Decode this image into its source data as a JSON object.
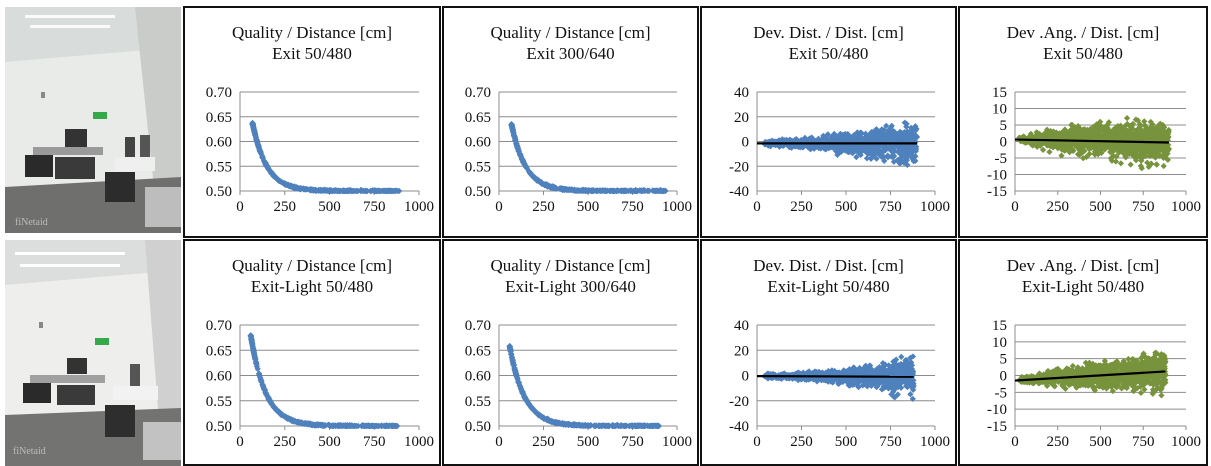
{
  "colors": {
    "quality_series": "#4f81bd",
    "deviation_angle_series": "#77933c",
    "trend_line": "#000000"
  },
  "photos": [
    {
      "name": "photo-room-exit",
      "watermark": "fiNetaid"
    },
    {
      "name": "photo-room-exit-light",
      "watermark": "fiNetaid"
    }
  ],
  "chart_data": [
    {
      "id": "r0c0",
      "type": "scatter",
      "title": [
        "Quality / Distance [cm]",
        "Exit 50/480"
      ],
      "xlim": [
        0,
        1000
      ],
      "xticks": [
        0,
        250,
        500,
        750,
        1000
      ],
      "ylim": [
        0.5,
        0.7
      ],
      "yticks": [
        "0.50",
        "0.55",
        "0.60",
        "0.65",
        "0.70"
      ],
      "grid": true,
      "color": "#4f81bd",
      "curve": {
        "kind": "decay",
        "x": [
          70,
          890
        ],
        "y_start": 0.637,
        "y_end": 0.5,
        "k": 0.0125
      }
    },
    {
      "id": "r0c1",
      "type": "scatter",
      "title": [
        "Quality / Distance [cm]",
        "Exit 300/640"
      ],
      "xlim": [
        0,
        1000
      ],
      "xticks": [
        0,
        250,
        500,
        750,
        1000
      ],
      "ylim": [
        0.5,
        0.7
      ],
      "yticks": [
        "0.50",
        "0.55",
        "0.60",
        "0.65",
        "0.70"
      ],
      "grid": true,
      "color": "#4f81bd",
      "curve": {
        "kind": "decay",
        "x": [
          70,
          940
        ],
        "y_start": 0.635,
        "y_end": 0.5,
        "k": 0.0125
      }
    },
    {
      "id": "r0c2",
      "type": "scatter",
      "title": [
        "Dev. Dist. / Dist. [cm]",
        "Exit 50/480"
      ],
      "xlim": [
        0,
        1000
      ],
      "xticks": [
        0,
        250,
        500,
        750,
        1000
      ],
      "ylim": [
        -40,
        40
      ],
      "yticks": [
        "-40",
        "-20",
        "0",
        "20",
        "40"
      ],
      "grid": true,
      "color": "#4f81bd",
      "spread": {
        "x": [
          40,
          900
        ],
        "max": 36,
        "growth": 1.6
      },
      "trend": {
        "x": [
          0,
          900
        ],
        "y": [
          -1.5,
          -1.5
        ]
      }
    },
    {
      "id": "r0c3",
      "type": "scatter",
      "title": [
        "Dev .Ang. / Dist. [cm]",
        "Exit 50/480"
      ],
      "xlim": [
        0,
        1000
      ],
      "xticks": [
        0,
        250,
        500,
        750,
        1000
      ],
      "ylim": [
        -15,
        15
      ],
      "yticks": [
        "-15",
        "-10",
        "-5",
        "0",
        "5",
        "10",
        "15"
      ],
      "grid": true,
      "color": "#77933c",
      "spread": {
        "x": [
          20,
          900
        ],
        "max": 14,
        "growth": 0.7
      },
      "trend": {
        "x": [
          0,
          900
        ],
        "y": [
          0.6,
          -0.3
        ]
      }
    },
    {
      "id": "r1c0",
      "type": "scatter",
      "title": [
        "Quality / Distance [cm]",
        "Exit-Light 50/480"
      ],
      "xlim": [
        0,
        1000
      ],
      "xticks": [
        0,
        250,
        500,
        750,
        1000
      ],
      "ylim": [
        0.5,
        0.7
      ],
      "yticks": [
        "0.50",
        "0.55",
        "0.60",
        "0.65",
        "0.70"
      ],
      "grid": true,
      "color": "#4f81bd",
      "curve": {
        "kind": "decay",
        "x": [
          60,
          880
        ],
        "y_start": 0.68,
        "y_end": 0.5,
        "k": 0.012
      }
    },
    {
      "id": "r1c1",
      "type": "scatter",
      "title": [
        "Quality / Distance [cm]",
        "Exit-Light 300/640"
      ],
      "xlim": [
        0,
        1000
      ],
      "xticks": [
        0,
        250,
        500,
        750,
        1000
      ],
      "ylim": [
        0.5,
        0.7
      ],
      "yticks": [
        "0.50",
        "0.55",
        "0.60",
        "0.65",
        "0.70"
      ],
      "grid": true,
      "color": "#4f81bd",
      "curve": {
        "kind": "decay",
        "x": [
          60,
          900
        ],
        "y_start": 0.658,
        "y_end": 0.5,
        "k": 0.012
      }
    },
    {
      "id": "r1c2",
      "type": "scatter",
      "title": [
        "Dev. Dist. / Dist. [cm]",
        "Exit-Light 50/480"
      ],
      "xlim": [
        0,
        1000
      ],
      "xticks": [
        0,
        250,
        500,
        750,
        1000
      ],
      "ylim": [
        -40,
        40
      ],
      "yticks": [
        "-40",
        "-20",
        "0",
        "20",
        "40"
      ],
      "grid": true,
      "color": "#4f81bd",
      "spread": {
        "x": [
          40,
          880
        ],
        "max": 30,
        "growth": 1.8
      },
      "trend": {
        "x": [
          0,
          880
        ],
        "y": [
          -0.5,
          -1
        ]
      }
    },
    {
      "id": "r1c3",
      "type": "scatter",
      "title": [
        "Dev .Ang. / Dist. [cm]",
        "Exit-Light 50/480"
      ],
      "xlim": [
        0,
        1000
      ],
      "xticks": [
        0,
        250,
        500,
        750,
        1000
      ],
      "ylim": [
        -15,
        15
      ],
      "yticks": [
        "-15",
        "-10",
        "-5",
        "0",
        "5",
        "10",
        "15"
      ],
      "grid": true,
      "color": "#77933c",
      "spread": {
        "x": [
          20,
          880
        ],
        "max": 12,
        "growth": 0.9
      },
      "trend": {
        "x": [
          0,
          880
        ],
        "y": [
          -1.5,
          1.2
        ]
      }
    }
  ]
}
